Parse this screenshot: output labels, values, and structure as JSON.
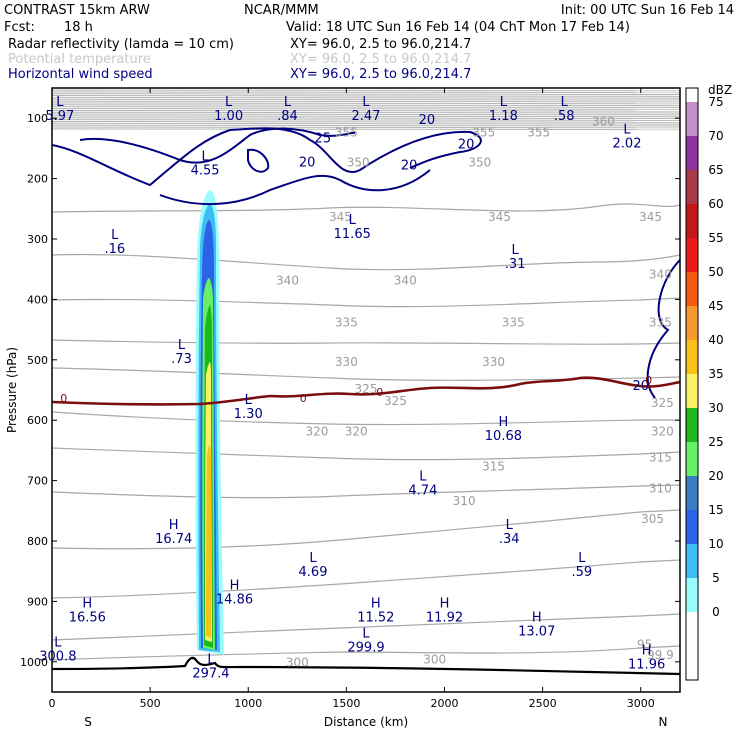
{
  "header": {
    "model": "CONTRAST 15km ARW",
    "center": "NCAR/MMM",
    "init": "Init: 00 UTC Sun 16 Feb 14",
    "fcst_label": "Fcst:",
    "fcst_value": "18 h",
    "valid": "Valid: 18 UTC Sun 16 Feb 14 (04 ChT Mon 17 Feb 14)"
  },
  "fields": [
    {
      "name": "Radar reflectivity (lamda = 10 cm)",
      "xy": "XY=  96.0,  2.5 to  96.0,214.7",
      "color": "#000000"
    },
    {
      "name": "Potential temperature",
      "xy": "XY=  96.0,  2.5 to  96.0,214.7",
      "color": "#c8c8c8"
    },
    {
      "name": "Horizontal wind speed",
      "xy": "XY=  96.0,  2.5 to  96.0,214.7",
      "color": "#000080"
    }
  ],
  "chart_data": {
    "type": "cross-section",
    "xlabel": "Distance (km)",
    "ylabel": "Pressure (hPa)",
    "x_ticks": [
      0,
      500,
      1000,
      1500,
      2000,
      2500,
      3000
    ],
    "xlim": [
      0,
      3200
    ],
    "y_ticks": [
      100,
      200,
      300,
      400,
      500,
      600,
      700,
      800,
      900,
      1000
    ],
    "ylim": [
      1050,
      50
    ],
    "left_end": "S",
    "right_end": "N",
    "colorbar": {
      "title": "dBZ",
      "levels": [
        0,
        5,
        10,
        15,
        20,
        25,
        30,
        35,
        40,
        45,
        50,
        55,
        60,
        65,
        70,
        75
      ],
      "colors": [
        "#ffffff",
        "#9afcfc",
        "#3cbdf4",
        "#2a62e8",
        "#3a7cc0",
        "#66f066",
        "#1cb81c",
        "#f8f066",
        "#f8c018",
        "#f89830",
        "#f85a10",
        "#ee1a1a",
        "#c31818",
        "#a83a4a",
        "#8e32a0",
        "#c48ec8"
      ]
    },
    "theta_labels": [
      {
        "v": "355",
        "x": 1500,
        "p": 130
      },
      {
        "v": "355",
        "x": 2200,
        "p": 130
      },
      {
        "v": "355",
        "x": 2480,
        "p": 130
      },
      {
        "v": "360",
        "x": 2810,
        "p": 112
      },
      {
        "v": "350",
        "x": 1560,
        "p": 180
      },
      {
        "v": "350",
        "x": 2180,
        "p": 180
      },
      {
        "v": "345",
        "x": 1470,
        "p": 270
      },
      {
        "v": "345",
        "x": 2280,
        "p": 270
      },
      {
        "v": "345",
        "x": 3050,
        "p": 270
      },
      {
        "v": "340",
        "x": 1200,
        "p": 375
      },
      {
        "v": "340",
        "x": 1800,
        "p": 375
      },
      {
        "v": "340",
        "x": 3100,
        "p": 365
      },
      {
        "v": "335",
        "x": 1500,
        "p": 445
      },
      {
        "v": "335",
        "x": 2350,
        "p": 445
      },
      {
        "v": "335",
        "x": 3100,
        "p": 445
      },
      {
        "v": "330",
        "x": 1500,
        "p": 510
      },
      {
        "v": "330",
        "x": 2250,
        "p": 510
      },
      {
        "v": "325",
        "x": 1600,
        "p": 555
      },
      {
        "v": "325",
        "x": 1750,
        "p": 575
      },
      {
        "v": "325",
        "x": 3110,
        "p": 578
      },
      {
        "v": "320",
        "x": 1350,
        "p": 625
      },
      {
        "v": "320",
        "x": 1550,
        "p": 625
      },
      {
        "v": "320",
        "x": 3110,
        "p": 625
      },
      {
        "v": "315",
        "x": 2250,
        "p": 683
      },
      {
        "v": "315",
        "x": 3100,
        "p": 668
      },
      {
        "v": "310",
        "x": 2100,
        "p": 740
      },
      {
        "v": "310",
        "x": 3100,
        "p": 720
      },
      {
        "v": "305",
        "x": 3060,
        "p": 770
      },
      {
        "v": "300",
        "x": 1250,
        "p": 1008
      },
      {
        "v": "300",
        "x": 1950,
        "p": 1003
      },
      {
        "v": "95",
        "x": 3020,
        "p": 978
      },
      {
        "v": "99.9",
        "x": 3100,
        "p": 995
      }
    ],
    "low_high_markers": [
      {
        "type": "L",
        "value": "5.97",
        "x": 40,
        "p": 80
      },
      {
        "type": "L",
        "value": "1.00",
        "x": 900,
        "p": 80
      },
      {
        "type": "L",
        "value": ".84",
        "x": 1200,
        "p": 80
      },
      {
        "type": "L",
        "value": "2.47",
        "x": 1600,
        "p": 80
      },
      {
        "type": "L",
        "value": "1.18",
        "x": 2300,
        "p": 80
      },
      {
        "type": "L",
        "value": ".58",
        "x": 2610,
        "p": 80
      },
      {
        "type": "L",
        "value": "2.02",
        "x": 2930,
        "p": 125
      },
      {
        "type": "L",
        "value": "4.55",
        "x": 780,
        "p": 170
      },
      {
        "type": "L",
        "value": "11.65",
        "x": 1530,
        "p": 275
      },
      {
        "type": "L",
        "value": ".16",
        "x": 320,
        "p": 300
      },
      {
        "type": "L",
        "value": ".31",
        "x": 2360,
        "p": 325
      },
      {
        "type": "L",
        "value": ".73",
        "x": 660,
        "p": 482
      },
      {
        "type": "L",
        "value": "1.30",
        "x": 1000,
        "p": 573
      },
      {
        "type": "H",
        "value": "10.68",
        "x": 2300,
        "p": 610
      },
      {
        "type": "L",
        "value": "4.74",
        "x": 1890,
        "p": 700
      },
      {
        "type": "H",
        "value": "16.74",
        "x": 620,
        "p": 780
      },
      {
        "type": "L",
        "value": ".34",
        "x": 2330,
        "p": 780
      },
      {
        "type": "L",
        "value": "4.69",
        "x": 1330,
        "p": 835
      },
      {
        "type": "L",
        "value": ".59",
        "x": 2700,
        "p": 835
      },
      {
        "type": "H",
        "value": "14.86",
        "x": 930,
        "p": 880
      },
      {
        "type": "H",
        "value": "16.56",
        "x": 180,
        "p": 910
      },
      {
        "type": "H",
        "value": "11.52",
        "x": 1650,
        "p": 910
      },
      {
        "type": "H",
        "value": "11.92",
        "x": 2000,
        "p": 910
      },
      {
        "type": "H",
        "value": "13.07",
        "x": 2470,
        "p": 933
      },
      {
        "type": "L",
        "value": "299.9",
        "x": 1600,
        "p": 960
      },
      {
        "type": "L",
        "value": "300.8",
        "x": 30,
        "p": 975
      },
      {
        "type": "H",
        "value": "11.96",
        "x": 3030,
        "p": 988
      },
      {
        "type": "L",
        "value": "297.4",
        "x": 810,
        "p": 1003
      }
    ],
    "wind_contour_labels": [
      {
        "v": "20",
        "x": 1910,
        "p": 110
      },
      {
        "v": "25",
        "x": 1380,
        "p": 140
      },
      {
        "v": "20",
        "x": 2110,
        "p": 150
      },
      {
        "v": "20",
        "x": 1300,
        "p": 180
      },
      {
        "v": "20",
        "x": 1820,
        "p": 185
      },
      {
        "v": "20",
        "x": 3000,
        "p": 550
      }
    ],
    "zero_isotherm_labels": [
      {
        "v": "0",
        "x": 60,
        "p": 570
      },
      {
        "v": "0",
        "x": 1280,
        "p": 570
      },
      {
        "v": "0",
        "x": 1670,
        "p": 560
      },
      {
        "v": "0",
        "x": 3040,
        "p": 540
      }
    ]
  }
}
